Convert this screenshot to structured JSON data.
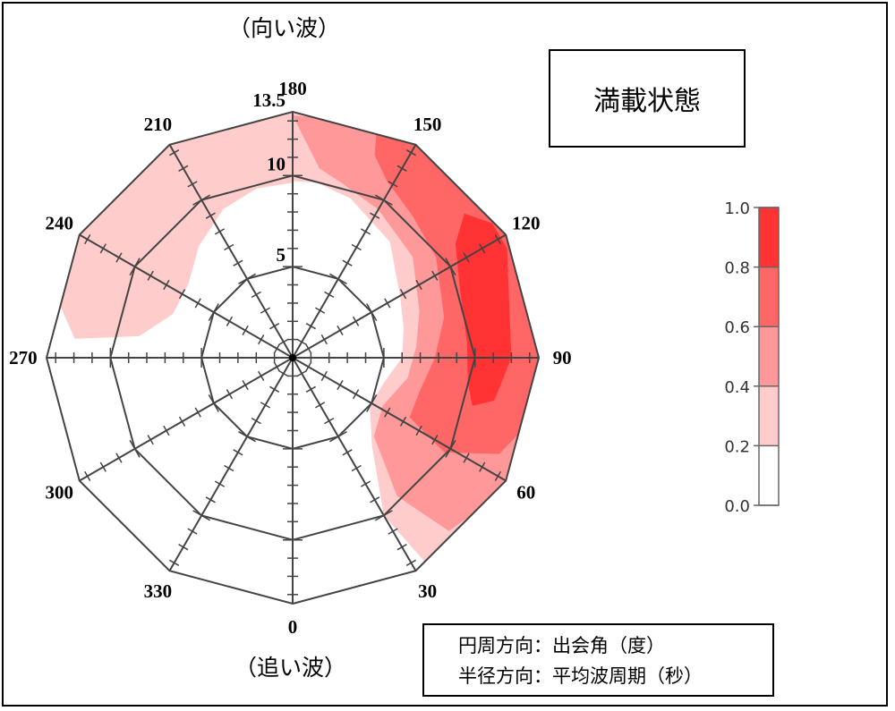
{
  "chart_data": {
    "type": "polar-contour",
    "title": "満載状態",
    "top_label": "（向い波）",
    "bottom_label": "（追い波）",
    "notes": [
      "円周方向：出会角（度）",
      "半径方向：平均波周期（秒）"
    ],
    "angle_ticks": [
      {
        "deg": 0,
        "label": "0"
      },
      {
        "deg": 30,
        "label": "30"
      },
      {
        "deg": 60,
        "label": "60"
      },
      {
        "deg": 90,
        "label": "90"
      },
      {
        "deg": 120,
        "label": "120"
      },
      {
        "deg": 150,
        "label": "150"
      },
      {
        "deg": 180,
        "label": "180"
      },
      {
        "deg": 210,
        "label": "210"
      },
      {
        "deg": 240,
        "label": "240"
      },
      {
        "deg": 270,
        "label": "270"
      },
      {
        "deg": 300,
        "label": "300"
      },
      {
        "deg": 330,
        "label": "330"
      }
    ],
    "radial_ticks": [
      {
        "value": 5,
        "label": "5"
      },
      {
        "value": 10,
        "label": "10"
      },
      {
        "value": 13.5,
        "label": "13.5"
      }
    ],
    "radial_range": [
      0,
      13.5
    ],
    "colorbar": {
      "ticks": [
        "0.0",
        "0.2",
        "0.4",
        "0.6",
        "0.8",
        "1.0"
      ],
      "bins": [
        {
          "from": 0.0,
          "to": 0.2,
          "color": "#ffffff"
        },
        {
          "from": 0.2,
          "to": 0.4,
          "color": "#ffcccc"
        },
        {
          "from": 0.4,
          "to": 0.6,
          "color": "#ff9999"
        },
        {
          "from": 0.6,
          "to": 0.8,
          "color": "#ff6666"
        },
        {
          "from": 0.8,
          "to": 1.0,
          "color": "#ff3333"
        }
      ]
    },
    "regions": [
      {
        "level": "0.2-0.4",
        "color": "#ffcccc",
        "points": [
          [
            180,
            13.5
          ],
          [
            195,
            13.5
          ],
          [
            210,
            13.5
          ],
          [
            225,
            13.5
          ],
          [
            240,
            13.5
          ],
          [
            255,
            13.5
          ],
          [
            265,
            12.0
          ],
          [
            262,
            8.5
          ],
          [
            250,
            7.0
          ],
          [
            235,
            7.0
          ],
          [
            220,
            8.0
          ],
          [
            205,
            9.0
          ],
          [
            192,
            9.5
          ],
          [
            180,
            9.6
          ]
        ]
      },
      {
        "level": "0.2-0.4",
        "color": "#ffcccc",
        "points": [
          [
            180,
            13.5
          ],
          [
            150,
            13.5
          ],
          [
            120,
            13.5
          ],
          [
            90,
            13.5
          ],
          [
            60,
            13.5
          ],
          [
            45,
            13.5
          ],
          [
            33,
            13.5
          ],
          [
            30,
            10.0
          ],
          [
            42,
            6.5
          ],
          [
            58,
            5.0
          ],
          [
            75,
            5.2
          ],
          [
            90,
            6.0
          ],
          [
            105,
            6.3
          ],
          [
            120,
            6.8
          ],
          [
            140,
            8.3
          ],
          [
            160,
            9.3
          ],
          [
            172,
            9.7
          ],
          [
            180,
            9.7
          ]
        ]
      },
      {
        "level": "0.4-0.6",
        "color": "#ff9999",
        "points": [
          [
            180,
            13.3
          ],
          [
            165,
            13.5
          ],
          [
            150,
            13.5
          ],
          [
            120,
            13.5
          ],
          [
            90,
            13.5
          ],
          [
            68,
            13.5
          ],
          [
            55,
            13.5
          ],
          [
            42,
            12.8
          ],
          [
            37,
            9.5
          ],
          [
            46,
            6.2
          ],
          [
            62,
            5.6
          ],
          [
            80,
            6.4
          ],
          [
            95,
            6.8
          ],
          [
            110,
            7.4
          ],
          [
            130,
            8.6
          ],
          [
            150,
            9.4
          ],
          [
            165,
            10.0
          ],
          [
            172,
            10.5
          ]
        ]
      },
      {
        "level": "0.6-0.8",
        "color": "#ff6666",
        "points": [
          [
            160,
            13.5
          ],
          [
            150,
            13.5
          ],
          [
            120,
            13.5
          ],
          [
            90,
            13.5
          ],
          [
            75,
            13.5
          ],
          [
            65,
            12.5
          ],
          [
            58,
            9.8
          ],
          [
            63,
            7.2
          ],
          [
            75,
            7.2
          ],
          [
            90,
            7.8
          ],
          [
            105,
            8.6
          ],
          [
            125,
            9.6
          ],
          [
            140,
            10.2
          ],
          [
            152,
            11.0
          ],
          [
            158,
            12.0
          ]
        ]
      },
      {
        "level": "0.8-1.0",
        "color": "#ff3333",
        "points": [
          [
            117,
            13.2
          ],
          [
            103,
            12.2
          ],
          [
            90,
            12.0
          ],
          [
            78,
            11.3
          ],
          [
            75,
            10.2
          ],
          [
            82,
            9.7
          ],
          [
            95,
            9.6
          ],
          [
            112,
            9.9
          ],
          [
            125,
            10.9
          ],
          [
            130,
            12.3
          ],
          [
            124,
            13.2
          ]
        ]
      }
    ]
  }
}
